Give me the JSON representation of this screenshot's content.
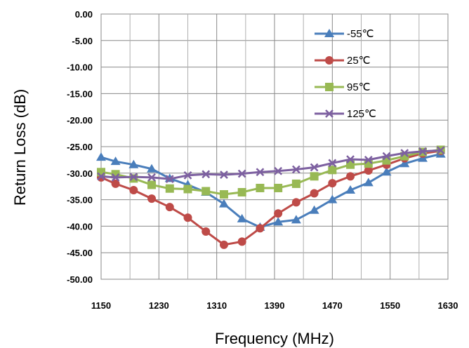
{
  "chart_data": {
    "type": "line",
    "title": "",
    "xlabel": "Frequency (MHz)",
    "ylabel": "Return Loss (dB)",
    "xlim": [
      1150,
      1630
    ],
    "ylim": [
      -50,
      0
    ],
    "xticks": [
      1150,
      1230,
      1310,
      1390,
      1470,
      1550,
      1630
    ],
    "xtick_labels": [
      "1150",
      "1230",
      "1310",
      "1390",
      "1470",
      "1550",
      "1630"
    ],
    "yticks": [
      0,
      -5,
      -10,
      -15,
      -20,
      -25,
      -30,
      -35,
      -40,
      -45,
      -50
    ],
    "ytick_labels": [
      "0.00",
      "-5.00",
      "-10.00",
      "-15.00",
      "-20.00",
      "-25.00",
      "-30.00",
      "-35.00",
      "-40.00",
      "-45.00",
      "-50.00"
    ],
    "grid": true,
    "legend_position": "top-right",
    "x": [
      1150,
      1170,
      1195,
      1220,
      1245,
      1270,
      1295,
      1320,
      1345,
      1370,
      1395,
      1420,
      1445,
      1470,
      1495,
      1520,
      1545,
      1570,
      1595,
      1620
    ],
    "series": [
      {
        "name": "-55℃",
        "color": "#4a7ebb",
        "marker": "triangle",
        "values": [
          -27.0,
          -27.8,
          -28.4,
          -29.2,
          -31.0,
          -32.2,
          -33.6,
          -35.8,
          -38.6,
          -40.2,
          -39.2,
          -38.8,
          -37.0,
          -35.0,
          -33.2,
          -31.8,
          -29.8,
          -28.2,
          -27.2,
          -26.4
        ]
      },
      {
        "name": "25℃",
        "color": "#be4b48",
        "marker": "circle",
        "values": [
          -30.8,
          -32.0,
          -33.2,
          -34.8,
          -36.4,
          -38.4,
          -41.0,
          -43.5,
          -42.9,
          -40.4,
          -37.6,
          -35.5,
          -33.8,
          -31.9,
          -30.6,
          -29.5,
          -28.4,
          -27.2,
          -26.3,
          -25.8
        ]
      },
      {
        "name": "95℃",
        "color": "#98b954",
        "marker": "square",
        "values": [
          -29.8,
          -30.2,
          -31.0,
          -32.2,
          -32.9,
          -33.0,
          -33.4,
          -34.0,
          -33.6,
          -32.8,
          -32.8,
          -32.0,
          -30.6,
          -29.4,
          -28.4,
          -28.2,
          -27.6,
          -26.8,
          -26.0,
          -25.6
        ]
      },
      {
        "name": "125℃",
        "color": "#7d60a0",
        "marker": "x",
        "values": [
          -30.6,
          -30.8,
          -30.7,
          -30.8,
          -31.1,
          -30.4,
          -30.2,
          -30.3,
          -30.1,
          -29.8,
          -29.6,
          -29.3,
          -28.9,
          -28.1,
          -27.4,
          -27.5,
          -26.8,
          -26.2,
          -25.9,
          -25.7
        ]
      }
    ]
  }
}
